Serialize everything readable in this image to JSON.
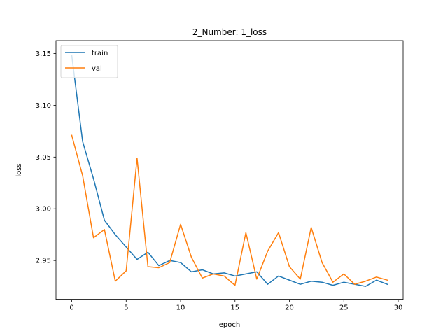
{
  "chart_data": {
    "type": "line",
    "title": "2_Number: 1_loss",
    "xlabel": "epoch",
    "ylabel": "loss",
    "xlim": [
      -1.45,
      30.45
    ],
    "ylim": [
      2.9125,
      3.1625
    ],
    "xticks": [
      0,
      5,
      10,
      15,
      20,
      25,
      30
    ],
    "xtick_labels": [
      "0",
      "5",
      "10",
      "15",
      "20",
      "25",
      "30"
    ],
    "yticks": [
      2.95,
      3.0,
      3.05,
      3.1,
      3.15
    ],
    "ytick_labels": [
      "2.95",
      "3.00",
      "3.05",
      "3.10",
      "3.15"
    ],
    "grid": false,
    "legend_position": "upper-left",
    "x": [
      0,
      1,
      2,
      3,
      4,
      5,
      6,
      7,
      8,
      9,
      10,
      11,
      12,
      13,
      14,
      15,
      16,
      17,
      18,
      19,
      20,
      21,
      22,
      23,
      24,
      25,
      26,
      27,
      28,
      29
    ],
    "series": [
      {
        "name": "train",
        "color": "#1f77b4",
        "values": [
          3.148,
          3.065,
          3.029,
          2.989,
          2.975,
          2.963,
          2.951,
          2.958,
          2.945,
          2.95,
          2.948,
          2.939,
          2.941,
          2.937,
          2.938,
          2.935,
          2.937,
          2.939,
          2.927,
          2.935,
          2.931,
          2.927,
          2.93,
          2.929,
          2.926,
          2.929,
          2.927,
          2.925,
          2.931,
          2.927
        ]
      },
      {
        "name": "val",
        "color": "#ff7f0e",
        "values": [
          3.071,
          3.032,
          2.972,
          2.98,
          2.93,
          2.94,
          3.049,
          2.944,
          2.943,
          2.948,
          2.985,
          2.953,
          2.933,
          2.937,
          2.935,
          2.926,
          2.977,
          2.932,
          2.959,
          2.977,
          2.944,
          2.932,
          2.982,
          2.948,
          2.929,
          2.937,
          2.927,
          2.93,
          2.934,
          2.931
        ]
      }
    ]
  }
}
